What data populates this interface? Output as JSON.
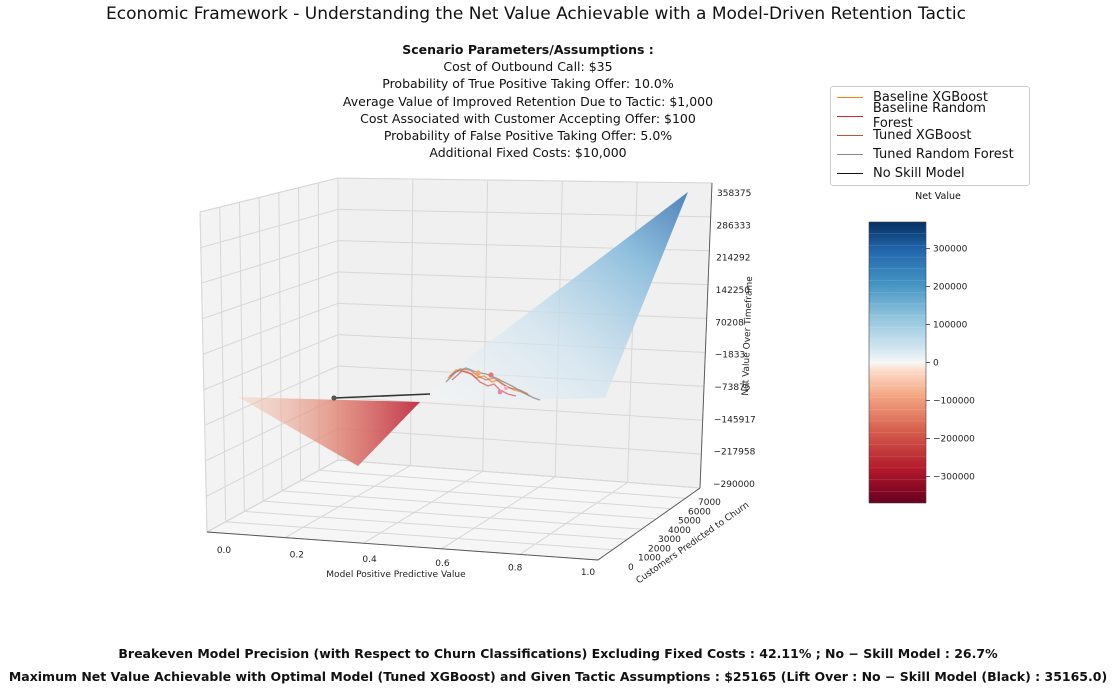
{
  "title": "Economic Framework - Understanding the Net Value Achievable with a Model-Driven Retention Tactic",
  "parameters": {
    "header": "Scenario Parameters/Assumptions :",
    "lines": [
      "Cost of Outbound Call: $35",
      "Probability of True Positive Taking Offer: 10.0%",
      "Average Value of Improved Retention Due to Tactic: $1,000",
      "Cost Associated with Customer Accepting Offer: $100",
      "Probability of False Positive Taking Offer: 5.0%",
      "Additional Fixed Costs: $10,000"
    ]
  },
  "legend": [
    {
      "label": "Baseline XGBoost",
      "color": "#ff7f0e"
    },
    {
      "label": "Baseline Random Forest",
      "color": "#d62728"
    },
    {
      "label": "Tuned XGBoost",
      "color": "#c0523a"
    },
    {
      "label": "Tuned Random Forest",
      "color": "#8c8c8c"
    },
    {
      "label": "No Skill Model",
      "color": "#111111"
    }
  ],
  "colorbar": {
    "title": "Net Value",
    "ticks": [
      "300000",
      "200000",
      "100000",
      "0",
      "−100000",
      "−200000",
      "−300000"
    ],
    "tick_values": [
      300000,
      200000,
      100000,
      0,
      -100000,
      -200000,
      -300000
    ],
    "range": [
      -370000,
      370000
    ],
    "colormap": "RdBu"
  },
  "axes": {
    "x_label": "Model Positive Predictive Value",
    "y_label": "Customers Predicted to Churn",
    "z_label": "Net Value Over Timeframe",
    "x_ticks": [
      "0.0",
      "0.2",
      "0.4",
      "0.6",
      "0.8",
      "1.0"
    ],
    "y_ticks": [
      "0",
      "1000",
      "2000",
      "3000",
      "4000",
      "5000",
      "6000",
      "7000"
    ],
    "z_ticks": [
      "358375",
      "286333",
      "214292",
      "142250",
      "70208",
      "−1833",
      "−73875",
      "−145917",
      "−217958",
      "−290000"
    ]
  },
  "chart_data": {
    "type": "area",
    "title": "Economic Framework - Understanding the Net Value Achievable with a Model-Driven Retention Tactic",
    "xlabel": "Model Positive Predictive Value",
    "ylabel": "Customers Predicted to Churn",
    "zlabel": "Net Value Over Timeframe",
    "xlim": [
      0,
      1
    ],
    "ylim": [
      0,
      7000
    ],
    "zlim": [
      -290000,
      358375
    ],
    "surface_corners": [
      {
        "x": 0,
        "y": 0,
        "z": -10000
      },
      {
        "x": 1,
        "y": 0,
        "z": -10000
      },
      {
        "x": 0,
        "y": 7000,
        "z": -290000
      },
      {
        "x": 1,
        "y": 7000,
        "z": 358375
      }
    ],
    "series": [
      {
        "name": "No Skill Model",
        "x": [
          0.267,
          0.38
        ],
        "y": [
          0,
          300
        ],
        "z": [
          -10000,
          35165
        ]
      },
      {
        "name": "Tuned XGBoost",
        "peak_net_value": 25165
      }
    ],
    "legend_position": "top-right"
  },
  "footer": {
    "line1": "Breakeven Model Precision (with Respect to Churn Classifications) Excluding Fixed Costs : 42.11% ; No − Skill Model : 26.7%",
    "line2": "Maximum Net Value Achievable with Optimal Model (Tuned XGBoost) and Given Tactic Assumptions : $25165 (Lift Over :  No − Skill Model (Black) :  35165.0)"
  }
}
